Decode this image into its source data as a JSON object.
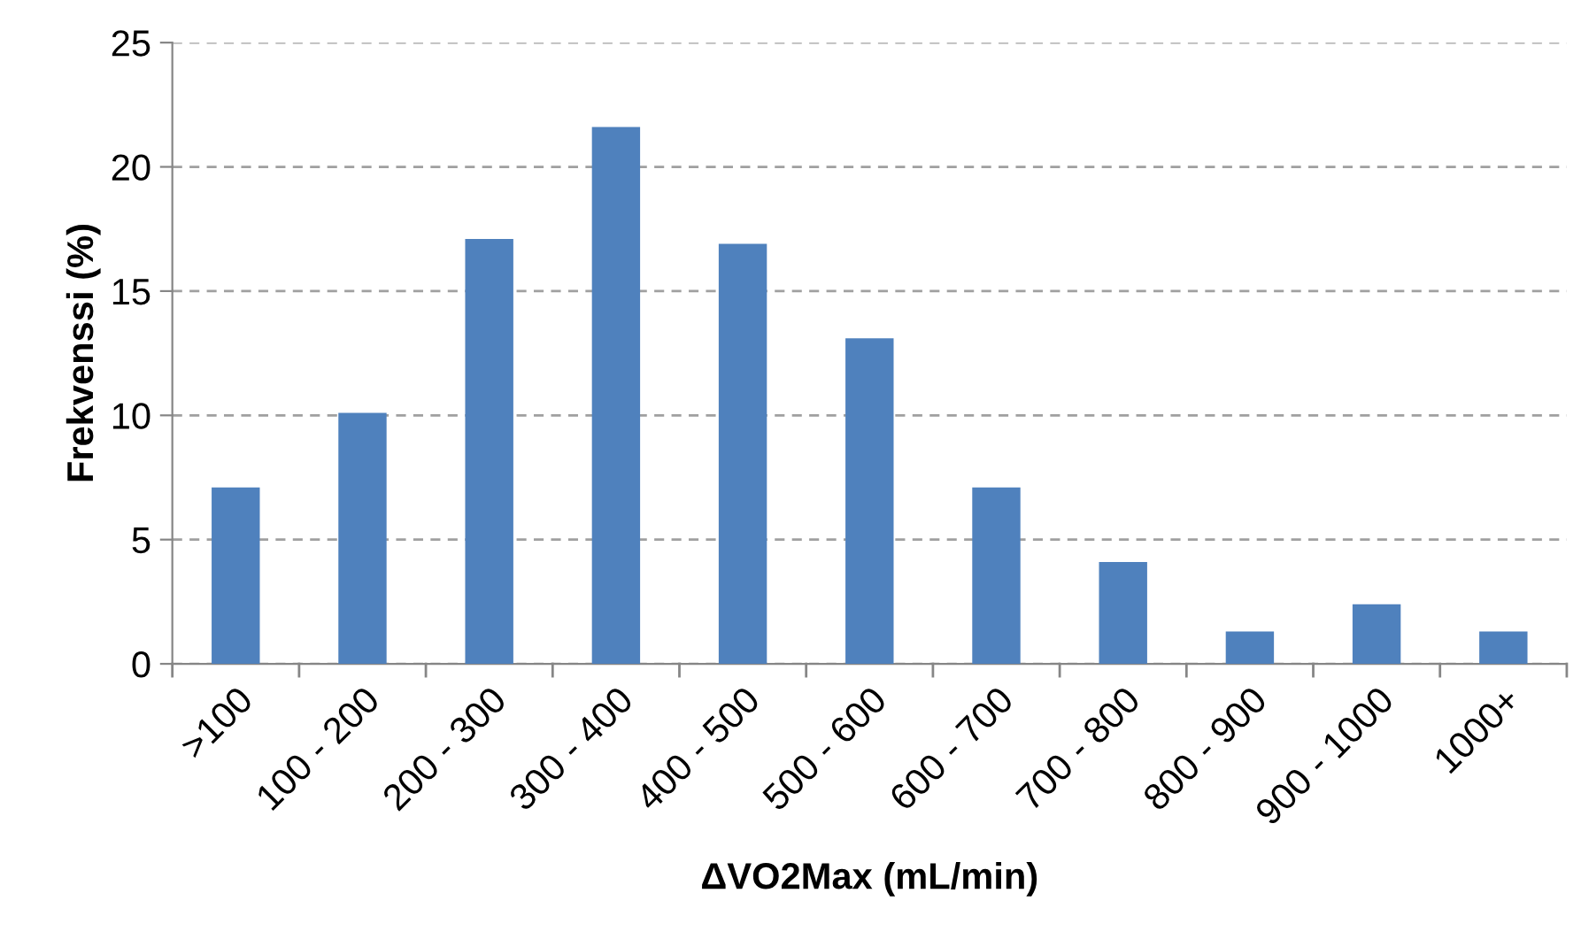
{
  "chart_data": {
    "type": "bar",
    "xlabel": "ΔVO2Max (mL/min)",
    "ylabel": "Frekvenssi (%)",
    "categories": [
      ">100",
      "100 - 200",
      "200 - 300",
      "300 - 400",
      "400 - 500",
      "500 - 600",
      "600 - 700",
      "700 - 800",
      "800 - 900",
      "900 - 1000",
      "1000+"
    ],
    "values": [
      7.1,
      10.1,
      17.1,
      21.6,
      16.9,
      13.1,
      7.1,
      4.1,
      1.3,
      2.4,
      1.3
    ],
    "color": "#4f81bd",
    "ylim": [
      0,
      25
    ],
    "yticks": [
      0,
      5,
      10,
      15,
      20,
      25
    ],
    "grid": "y",
    "line_style": "dashed"
  }
}
